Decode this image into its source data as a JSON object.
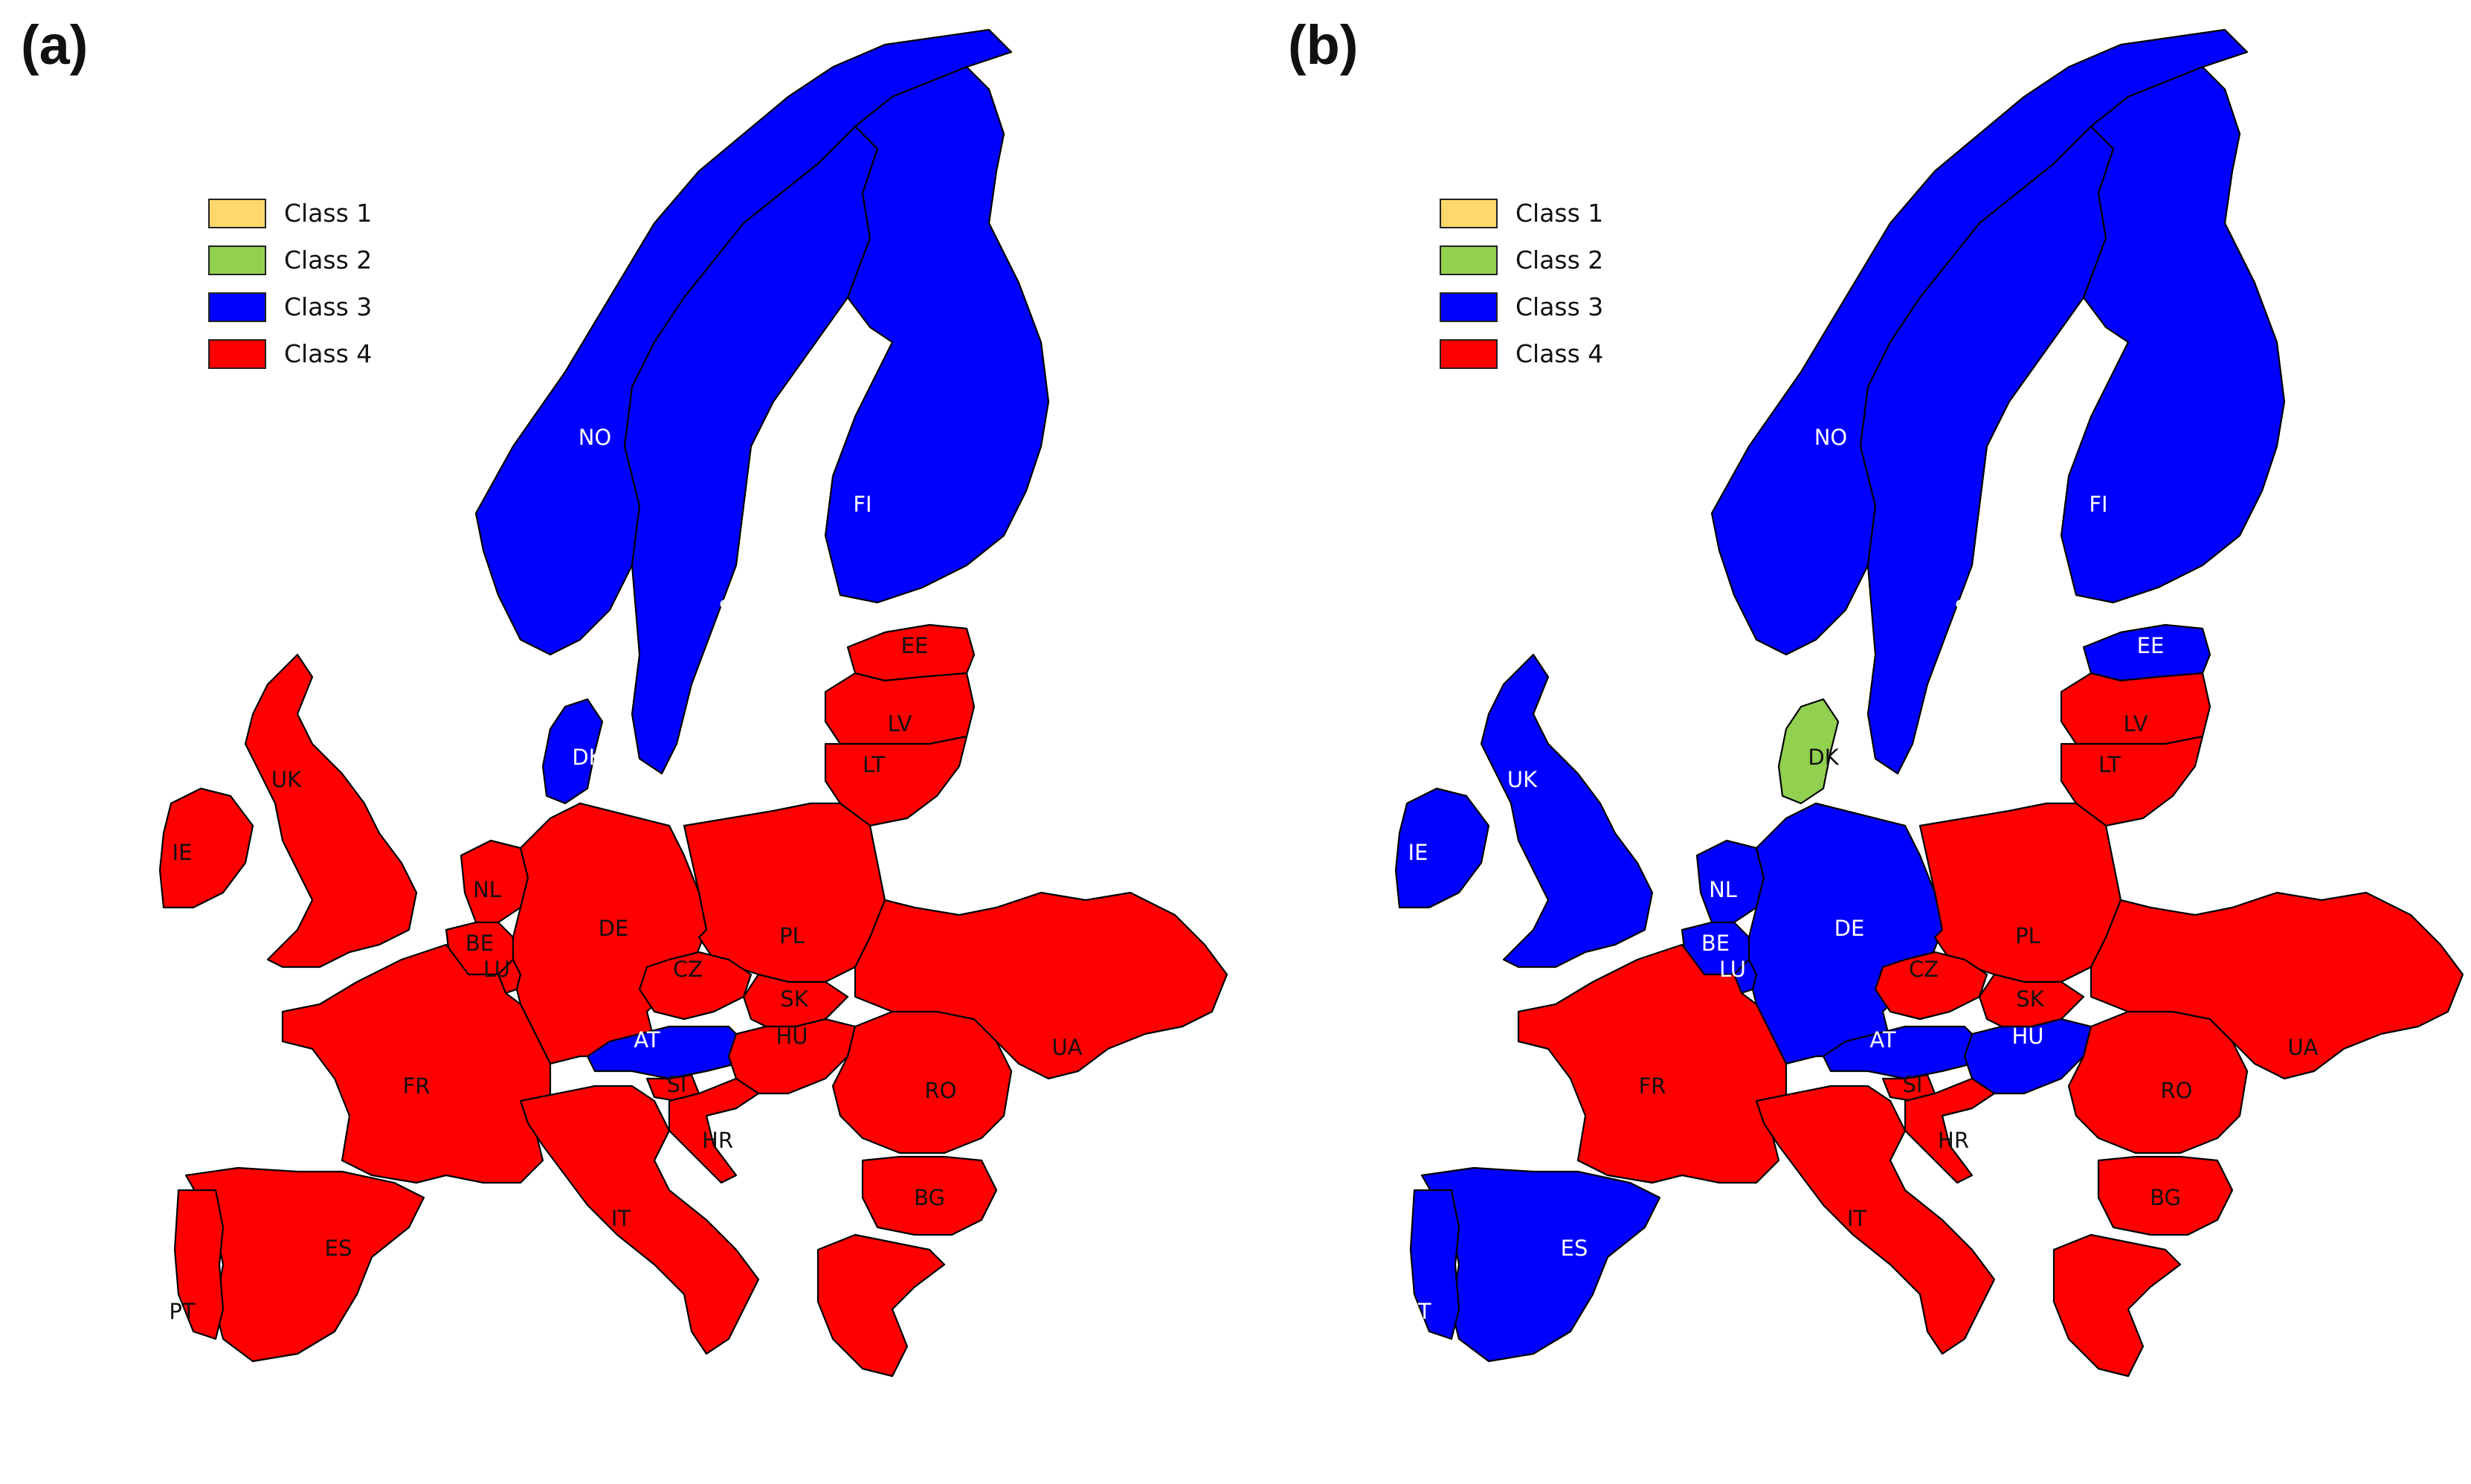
{
  "panels": [
    {
      "label": "(a)",
      "legend": [
        {
          "label": "Class 1",
          "color": "#ffd86b"
        },
        {
          "label": "Class 2",
          "color": "#92d050"
        },
        {
          "label": "Class 3",
          "color": "#0000ff"
        },
        {
          "label": "Class 4",
          "color": "#ff0000"
        }
      ],
      "assignments": {
        "NO": 3,
        "SE": 3,
        "FI": 3,
        "DK": 3,
        "AT": 3,
        "EE": 4,
        "LV": 4,
        "LT": 4,
        "UK": 4,
        "IE": 4,
        "NL": 4,
        "BE": 4,
        "LU": 4,
        "DE": 4,
        "PL": 4,
        "CZ": 4,
        "SK": 4,
        "HU": 4,
        "FR": 4,
        "ES": 4,
        "PT": 4,
        "IT": 4,
        "SI": 4,
        "HR": 4,
        "RO": 4,
        "BG": 4,
        "UA": 4,
        "GR": 4
      },
      "labels": {
        "NO": "NO",
        "SE": "SE",
        "FI": "FI",
        "DK": "DK",
        "AT": "AT",
        "EE": "EE",
        "LV": "LV",
        "LT": "LT",
        "UK": "UK",
        "IE": "IE",
        "NL": "NL",
        "BE": "BE",
        "LU": "LU",
        "DE": "DE",
        "PL": "PL",
        "CZ": "CZ",
        "SK": "SK",
        "HU": "HU",
        "FR": "FR",
        "ES": "ES",
        "PT": "PT",
        "IT": "IT",
        "SI": "SI",
        "HR": "HR",
        "RO": "RO",
        "BG": "BG",
        "UA": "UA"
      }
    },
    {
      "label": "(b)",
      "legend": [
        {
          "label": "Class 1",
          "color": "#ffd86b"
        },
        {
          "label": "Class 2",
          "color": "#92d050"
        },
        {
          "label": "Class 3",
          "color": "#0000ff"
        },
        {
          "label": "Class 4",
          "color": "#ff0000"
        }
      ],
      "assignments": {
        "NO": 3,
        "SE": 3,
        "FI": 3,
        "EE": 3,
        "UK": 3,
        "IE": 3,
        "NL": 3,
        "BE": 3,
        "LU": 3,
        "DE": 3,
        "AT": 3,
        "HU": 3,
        "ES": 3,
        "PT": 3,
        "DK": 2,
        "LV": 4,
        "LT": 4,
        "PL": 4,
        "CZ": 4,
        "SK": 4,
        "FR": 4,
        "IT": 4,
        "SI": 4,
        "HR": 4,
        "RO": 4,
        "BG": 4,
        "UA": 4,
        "GR": 4
      },
      "labels": {
        "NO": "NO",
        "SE": "SE",
        "FI": "FI",
        "DK": "DK",
        "AT": "AT",
        "EE": "EE",
        "LV": "LV",
        "LT": "LT",
        "UK": "UK",
        "IE": "IE",
        "NL": "NL",
        "BE": "BE",
        "LU": "LU",
        "DE": "DE",
        "PL": "PL",
        "CZ": "CZ",
        "SK": "SK",
        "HU": "HU",
        "FR": "FR",
        "ES": "ES",
        "PT": "PT",
        "IT": "IT",
        "SI": "SI",
        "HR": "HR",
        "RO": "RO",
        "BG": "BG",
        "UA": "UA"
      }
    }
  ]
}
